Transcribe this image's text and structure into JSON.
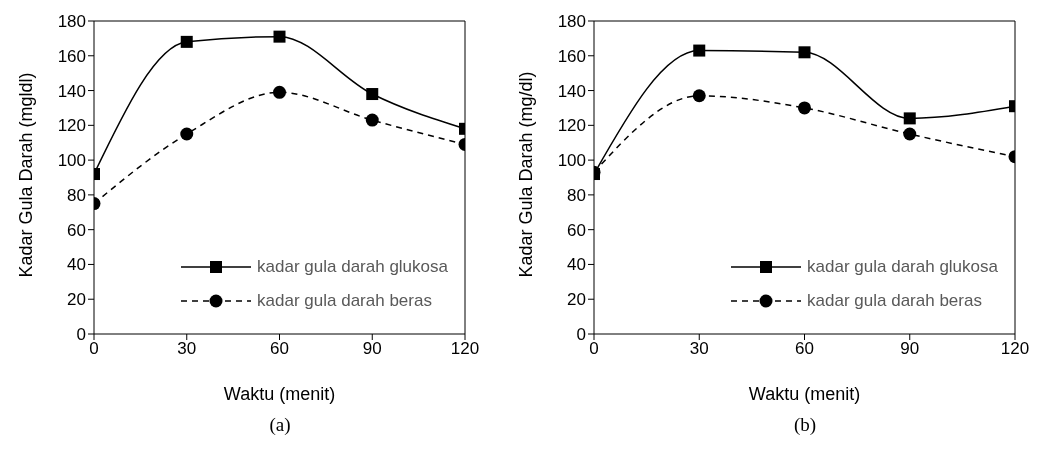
{
  "chart_data": [
    {
      "type": "line",
      "xlabel": "Waktu (menit)",
      "ylabel": "Kadar Gula Darah (mgldl)",
      "annotations": [
        "(a)"
      ],
      "x": [
        0,
        30,
        60,
        90,
        120
      ],
      "xlim": [
        0,
        120
      ],
      "xticks": [
        0,
        30,
        60,
        90,
        120
      ],
      "ylim": [
        0,
        180
      ],
      "yticks": [
        0,
        20,
        40,
        60,
        80,
        100,
        120,
        140,
        160,
        180
      ],
      "grid": false,
      "legend": "bottom right",
      "series": [
        {
          "name": "kadar gula darah glukosa",
          "color": "#000000",
          "marker": "square",
          "line_style": "solid",
          "values": [
            92,
            168,
            171,
            138,
            118
          ]
        },
        {
          "name": "kadar gula darah beras",
          "color": "#000000",
          "marker": "circle",
          "line_style": "dashed",
          "values": [
            75,
            115,
            139,
            123,
            109
          ]
        }
      ]
    },
    {
      "type": "line",
      "xlabel": "Waktu (menit)",
      "ylabel": "Kadar Gula Darah (mg/dl)",
      "annotations": [
        "(b)"
      ],
      "x": [
        0,
        30,
        60,
        90,
        120
      ],
      "xlim": [
        0,
        120
      ],
      "xticks": [
        0,
        30,
        60,
        90,
        120
      ],
      "ylim": [
        0,
        180
      ],
      "yticks": [
        0,
        20,
        40,
        60,
        80,
        100,
        120,
        140,
        160,
        180
      ],
      "grid": false,
      "legend": "bottom right",
      "series": [
        {
          "name": "kadar gula darah glukosa",
          "color": "#000000",
          "marker": "square",
          "line_style": "solid",
          "values": [
            92,
            163,
            162,
            124,
            131
          ]
        },
        {
          "name": "kadar gula darah beras",
          "color": "#000000",
          "marker": "circle",
          "line_style": "dashed",
          "values": [
            93,
            137,
            130,
            115,
            102
          ]
        }
      ]
    }
  ]
}
